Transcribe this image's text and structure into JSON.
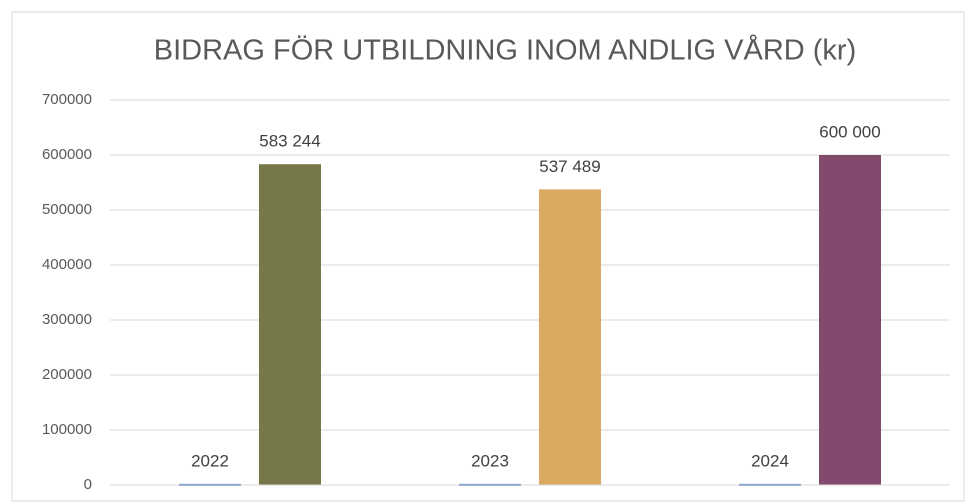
{
  "chart_data": {
    "type": "bar",
    "title": "BIDRAG FÖR UTBILDNING INOM ANDLIG VÅRD (kr)",
    "categories": [
      null,
      null,
      null
    ],
    "series": [
      {
        "color": "#4472c4",
        "values": [
          2022,
          2023,
          2024
        ]
      },
      {
        "colors": [
          "#76784a",
          "#d9aa62",
          "#824b6e"
        ],
        "values": [
          583244,
          537489,
          600000
        ],
        "value_labels": [
          "583 244",
          "537 489",
          "600 000"
        ]
      }
    ],
    "ylim": [
      0,
      700000
    ],
    "yticks": [
      0,
      100000,
      200000,
      300000,
      400000,
      500000,
      600000,
      700000
    ],
    "grid": true
  }
}
